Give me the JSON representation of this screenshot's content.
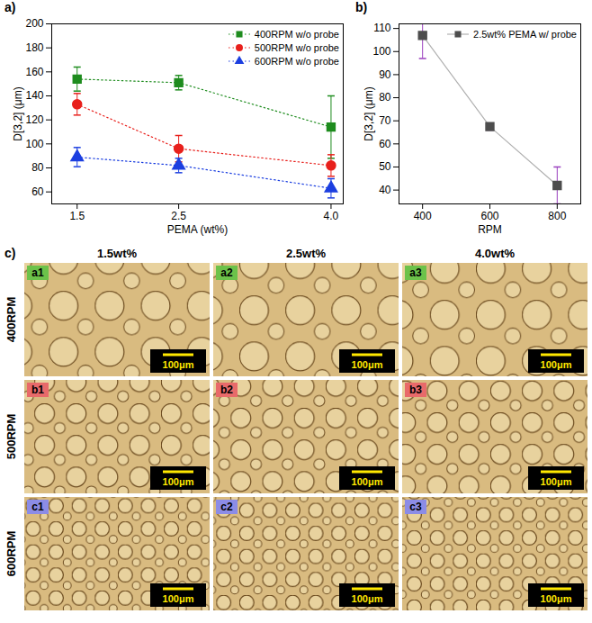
{
  "chart_data": [
    {
      "type": "line",
      "title": "a)",
      "xlabel": "PEMA (wt%)",
      "ylabel": "D[3,2] (μm)",
      "x": [
        1.5,
        2.5,
        4.0
      ],
      "xlim": [
        1.25,
        4.12
      ],
      "xticks": [
        1.5,
        2.5,
        {
          "value": 4,
          "label": "4.0"
        }
      ],
      "ylim": [
        50,
        200
      ],
      "yticks": [
        60,
        80,
        100,
        120,
        140,
        160,
        180,
        200
      ],
      "grid": false,
      "legend": "top-right",
      "series": [
        {
          "name": "400RPM w/o probe",
          "color": "#1e8c1e",
          "marker": "square",
          "line_style": "dotted",
          "values": [
            154,
            151,
            114
          ],
          "errors": [
            10,
            6,
            26
          ]
        },
        {
          "name": "500RPM w/o probe",
          "color": "#e8201c",
          "marker": "circle",
          "line_style": "dotted",
          "values": [
            133,
            96,
            82
          ],
          "errors": [
            9,
            11,
            9
          ]
        },
        {
          "name": "600RPM w/o probe",
          "color": "#1c3fe0",
          "marker": "triangle",
          "line_style": "dotted",
          "values": [
            89,
            82,
            63
          ],
          "errors": [
            8,
            6,
            8
          ]
        }
      ]
    },
    {
      "type": "line",
      "title": "b)",
      "xlabel": "RPM",
      "ylabel": "D[3,2] (μm)",
      "x": [
        400,
        600,
        800
      ],
      "xlim": [
        330,
        870
      ],
      "xticks": [
        400,
        600,
        800
      ],
      "ylim": [
        34,
        112
      ],
      "yticks": [
        40,
        50,
        60,
        70,
        80,
        90,
        100,
        110
      ],
      "grid": false,
      "legend": "top-right",
      "series": [
        {
          "name": "2.5wt% PEMA w/ probe",
          "color": "#4d4d4d",
          "marker": "square",
          "line_style": "solid",
          "values": [
            107,
            67.5,
            42
          ],
          "errors": [
            10,
            1.5,
            8
          ]
        }
      ]
    }
  ],
  "image_grid": {
    "title": "c)",
    "columns": [
      "1.5wt%",
      "2.5wt%",
      "4.0wt%"
    ],
    "rows": [
      "400RPM",
      "500RPM",
      "600RPM"
    ],
    "panels": [
      [
        {
          "label": "a1",
          "scale_bar": "100μm"
        },
        {
          "label": "a2",
          "scale_bar": "100μm"
        },
        {
          "label": "a3",
          "scale_bar": "100μm"
        }
      ],
      [
        {
          "label": "b1",
          "scale_bar": "100μm"
        },
        {
          "label": "b2",
          "scale_bar": "100μm"
        },
        {
          "label": "b3",
          "scale_bar": "100μm"
        }
      ],
      [
        {
          "label": "c1",
          "scale_bar": "100μm"
        },
        {
          "label": "c2",
          "scale_bar": "100μm"
        },
        {
          "label": "c3",
          "scale_bar": "100μm"
        }
      ]
    ]
  }
}
